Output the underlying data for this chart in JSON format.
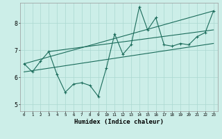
{
  "xlabel": "Humidex (Indice chaleur)",
  "xlim": [
    -0.5,
    23.5
  ],
  "ylim": [
    4.75,
    8.75
  ],
  "ytick_values": [
    5,
    6,
    7,
    8
  ],
  "background_color": "#cceee8",
  "grid_color": "#aad8d0",
  "line_color": "#1a6b5a",
  "series": {
    "line1_x": [
      0,
      1,
      2,
      3,
      4,
      5,
      6,
      7,
      8,
      9,
      10,
      11,
      12,
      13,
      14,
      15,
      16,
      17,
      18,
      19,
      20,
      21,
      22,
      23
    ],
    "line1_y": [
      6.5,
      6.2,
      6.6,
      6.95,
      6.1,
      5.45,
      5.75,
      5.8,
      5.7,
      5.3,
      6.35,
      7.6,
      6.85,
      7.2,
      8.6,
      7.75,
      8.2,
      7.2,
      7.15,
      7.25,
      7.2,
      7.5,
      7.65,
      8.45
    ],
    "line2_x": [
      0,
      23
    ],
    "line2_y": [
      6.5,
      8.45
    ],
    "line3_x": [
      0,
      23
    ],
    "line3_y": [
      6.2,
      7.25
    ],
    "line4_x": [
      3,
      23
    ],
    "line4_y": [
      6.95,
      7.75
    ]
  }
}
